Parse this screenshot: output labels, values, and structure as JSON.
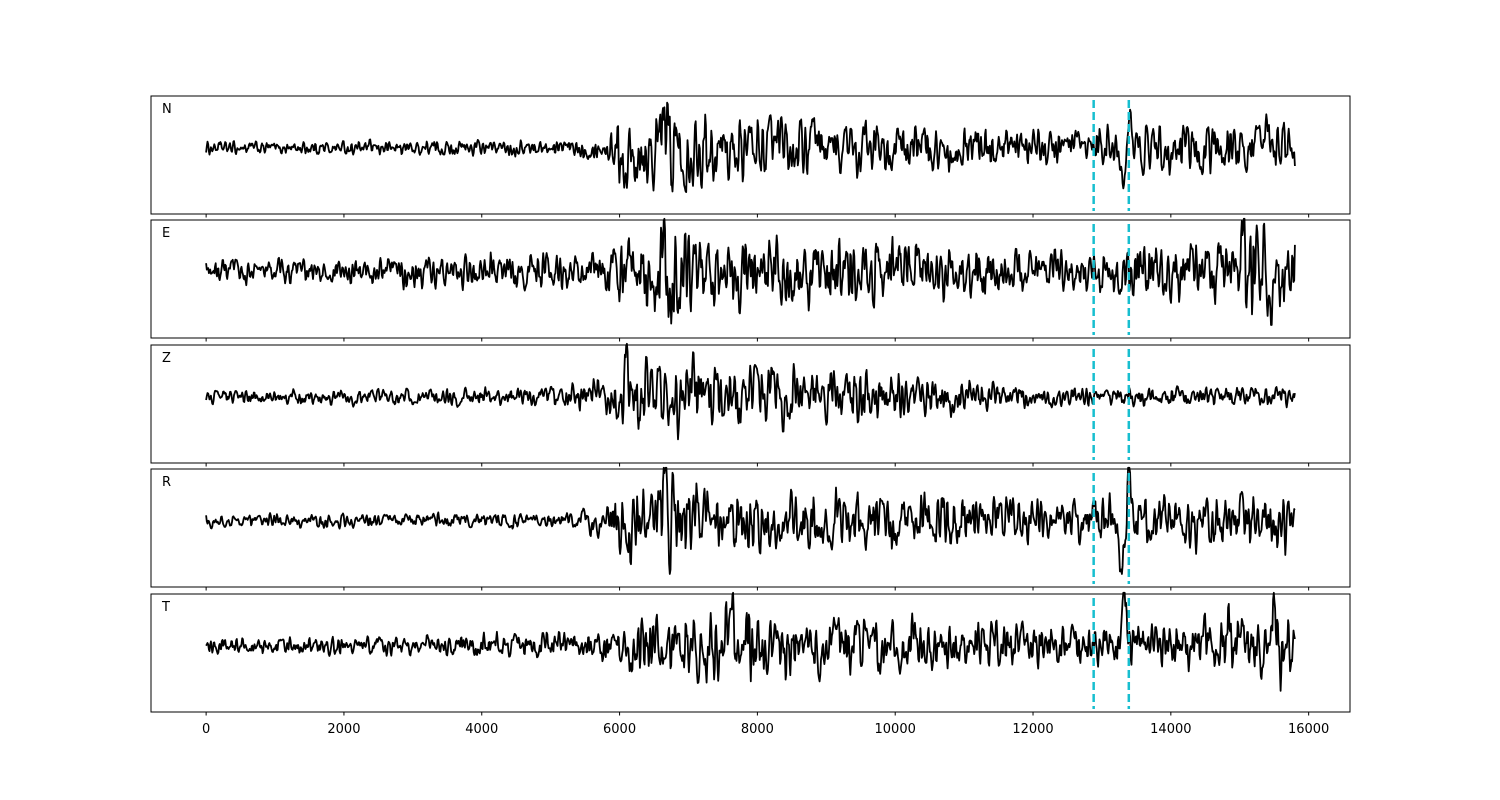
{
  "chart_data": {
    "type": "line",
    "layout": "stacked-panels",
    "shared_x_axis": true,
    "xlim": [
      -800,
      16600
    ],
    "x_ticks": [
      0,
      2000,
      4000,
      6000,
      8000,
      10000,
      12000,
      14000,
      16000
    ],
    "x_tick_labels": [
      "0",
      "2000",
      "4000",
      "6000",
      "8000",
      "10000",
      "12000",
      "14000",
      "16000"
    ],
    "x_range_of_traces": [
      0,
      15800
    ],
    "grid": false,
    "y_ticks_shown": false,
    "trace_color": "#000000",
    "marker_color": "#17becf",
    "vertical_markers": [
      {
        "x": 12880,
        "style": "dashed"
      },
      {
        "x": 13390,
        "style": "dashed"
      }
    ],
    "panels": [
      {
        "label": "N",
        "envelope": [
          [
            0,
            0.08
          ],
          [
            5000,
            0.1
          ],
          [
            5800,
            0.15
          ],
          [
            6000,
            0.45
          ],
          [
            6700,
            0.75
          ],
          [
            7400,
            0.5
          ],
          [
            9000,
            0.45
          ],
          [
            11000,
            0.35
          ],
          [
            12800,
            0.25
          ],
          [
            13000,
            0.35
          ],
          [
            15800,
            0.45
          ]
        ],
        "spikes": [
          {
            "x": 13310,
            "y": -0.95
          },
          {
            "x": 13390,
            "y": 0.85
          },
          {
            "x": 6650,
            "y": 0.65
          },
          {
            "x": 6100,
            "y": -0.6
          }
        ]
      },
      {
        "label": "E",
        "envelope": [
          [
            0,
            0.15
          ],
          [
            2000,
            0.17
          ],
          [
            4000,
            0.2
          ],
          [
            5800,
            0.25
          ],
          [
            6000,
            0.5
          ],
          [
            6700,
            0.95
          ],
          [
            7500,
            0.55
          ],
          [
            9500,
            0.55
          ],
          [
            11500,
            0.4
          ],
          [
            12800,
            0.3
          ],
          [
            13500,
            0.45
          ],
          [
            14800,
            0.5
          ],
          [
            15200,
            0.85
          ],
          [
            15800,
            0.6
          ]
        ],
        "spikes": [
          {
            "x": 6650,
            "y": 0.82
          },
          {
            "x": 6700,
            "y": -0.85
          },
          {
            "x": 15050,
            "y": 0.82
          },
          {
            "x": 15450,
            "y": -0.82
          }
        ]
      },
      {
        "label": "Z",
        "envelope": [
          [
            0,
            0.08
          ],
          [
            5000,
            0.12
          ],
          [
            5800,
            0.25
          ],
          [
            6200,
            0.6
          ],
          [
            7000,
            0.55
          ],
          [
            9000,
            0.45
          ],
          [
            10500,
            0.3
          ],
          [
            12000,
            0.15
          ],
          [
            15800,
            0.15
          ]
        ],
        "spikes": [
          {
            "x": 6100,
            "y": 1.0
          },
          {
            "x": 6700,
            "y": -0.55
          },
          {
            "x": 8700,
            "y": 0.5
          },
          {
            "x": 9300,
            "y": 0.45
          }
        ]
      },
      {
        "label": "R",
        "envelope": [
          [
            0,
            0.08
          ],
          [
            5000,
            0.1
          ],
          [
            5800,
            0.2
          ],
          [
            6000,
            0.5
          ],
          [
            6700,
            0.8
          ],
          [
            7400,
            0.5
          ],
          [
            9000,
            0.5
          ],
          [
            11000,
            0.4
          ],
          [
            12800,
            0.3
          ],
          [
            13000,
            0.4
          ],
          [
            15800,
            0.45
          ]
        ],
        "spikes": [
          {
            "x": 6660,
            "y": 0.95
          },
          {
            "x": 6130,
            "y": -0.65
          },
          {
            "x": 13400,
            "y": 0.85
          },
          {
            "x": 13290,
            "y": -0.92
          }
        ]
      },
      {
        "label": "T",
        "envelope": [
          [
            0,
            0.1
          ],
          [
            2500,
            0.12
          ],
          [
            4000,
            0.15
          ],
          [
            5800,
            0.2
          ],
          [
            6200,
            0.45
          ],
          [
            7600,
            0.6
          ],
          [
            9000,
            0.45
          ],
          [
            11000,
            0.38
          ],
          [
            12800,
            0.3
          ],
          [
            13500,
            0.4
          ],
          [
            14800,
            0.4
          ],
          [
            15200,
            0.6
          ],
          [
            15800,
            0.55
          ]
        ],
        "spikes": [
          {
            "x": 13320,
            "y": 1.0
          },
          {
            "x": 7620,
            "y": 0.6
          },
          {
            "x": 15500,
            "y": 0.6
          },
          {
            "x": 14850,
            "y": 0.58
          }
        ]
      }
    ]
  }
}
